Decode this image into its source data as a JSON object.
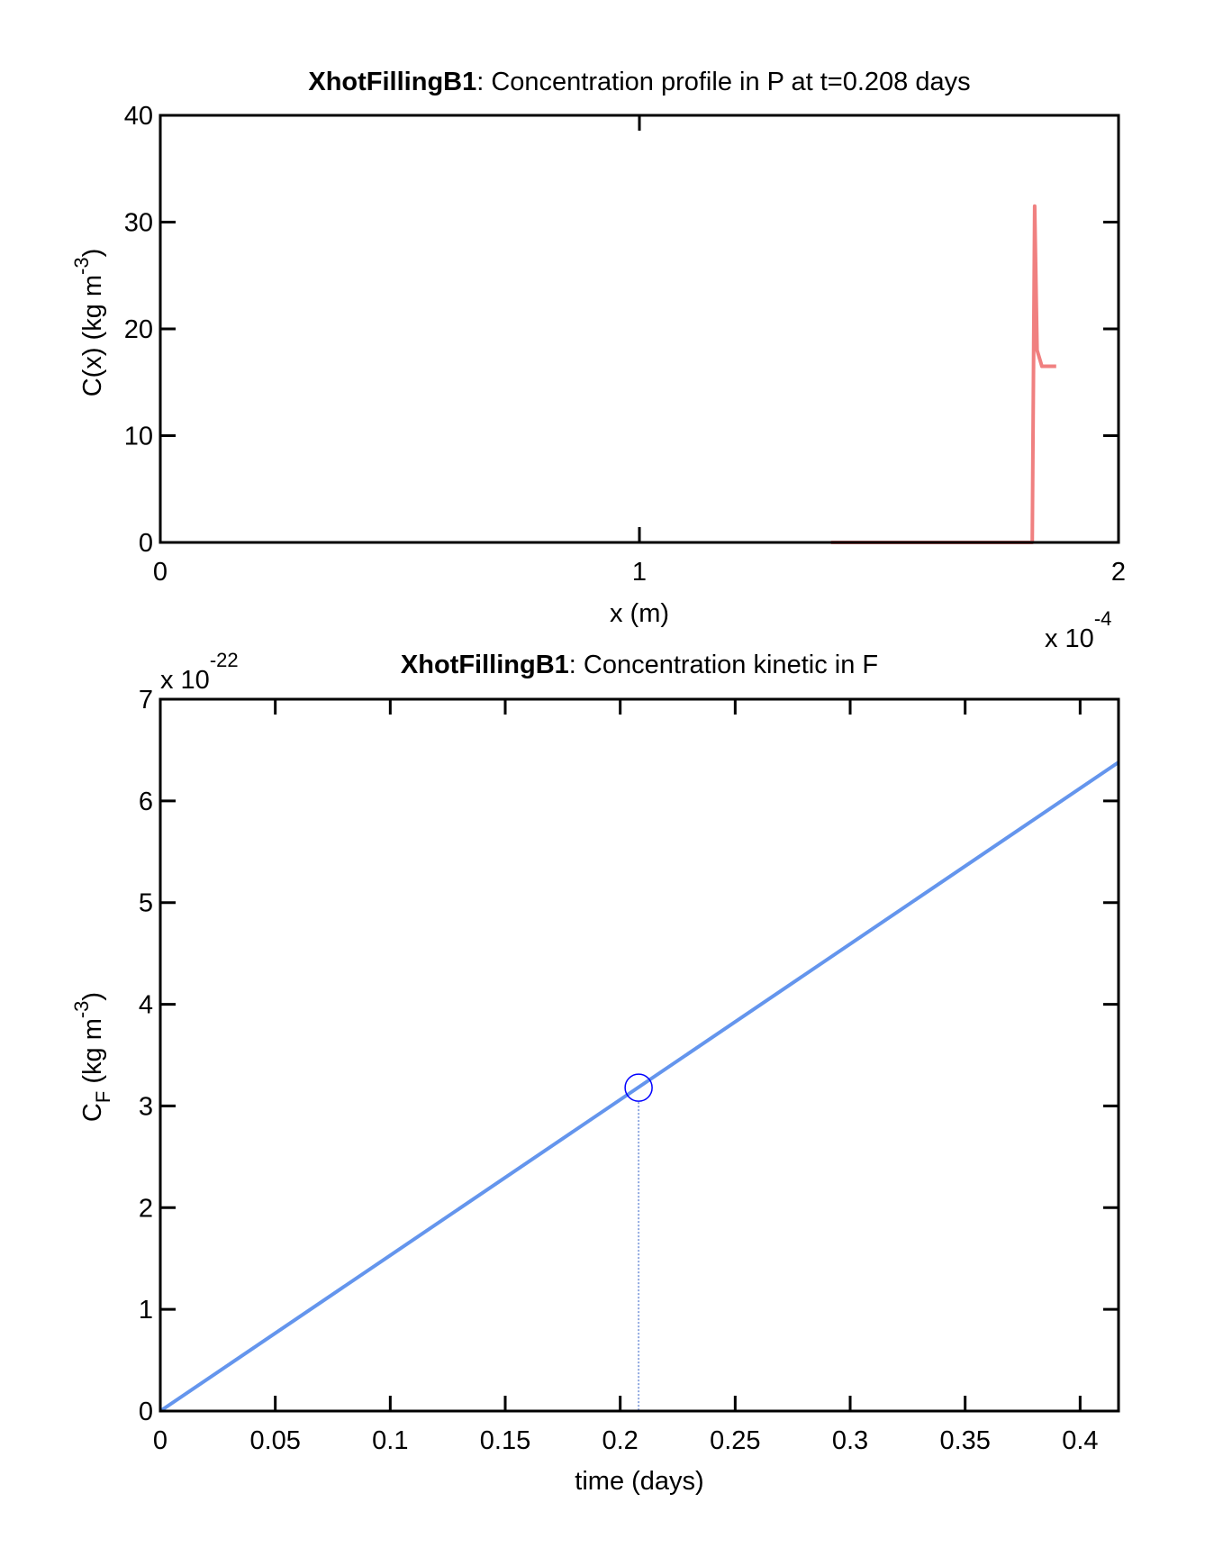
{
  "chart_data": [
    {
      "type": "line",
      "title_bold": "XhotFillingB1",
      "title_rest": ": Concentration profile in P at t=0.208 days",
      "xlabel": "x (m)",
      "ylabel_main": "C(x) (kg m",
      "ylabel_sup": "-3",
      "ylabel_close": ")",
      "x_multiplier": "x 10",
      "x_multiplier_exp": "-4",
      "xlim": [
        0,
        2
      ],
      "ylim": [
        0,
        40
      ],
      "xticks": [
        0,
        1,
        2
      ],
      "xtick_labels": [
        "0",
        "1",
        "2"
      ],
      "yticks": [
        0,
        10,
        20,
        30,
        40
      ],
      "ytick_labels": [
        "0",
        "10",
        "20",
        "30",
        "40"
      ],
      "color": "#f08080",
      "series": [
        {
          "x": [
            1.4,
            1.81,
            1.82,
            1.825,
            1.83,
            1.84,
            1.85,
            1.87
          ],
          "y": [
            0,
            0,
            0,
            31.5,
            18,
            16.5,
            16.5,
            16.5
          ]
        }
      ]
    },
    {
      "type": "line",
      "title_bold": "XhotFillingB1",
      "title_rest": ": Concentration kinetic in F",
      "xlabel": "time (days)",
      "ylabel_main": "C",
      "ylabel_sub": "F",
      "ylabel_units": " (kg m",
      "ylabel_sup": "-3",
      "ylabel_close": ")",
      "y_multiplier": "x 10",
      "y_multiplier_exp": "-22",
      "xlim": [
        0,
        0.4167
      ],
      "ylim": [
        0,
        7
      ],
      "xticks": [
        0,
        0.05,
        0.1,
        0.15,
        0.2,
        0.25,
        0.3,
        0.35,
        0.4
      ],
      "xtick_labels": [
        "0",
        "0.05",
        "0.1",
        "0.15",
        "0.2",
        "0.25",
        "0.3",
        "0.35",
        "0.4"
      ],
      "yticks": [
        0,
        1,
        2,
        3,
        4,
        5,
        6,
        7
      ],
      "ytick_labels": [
        "0",
        "1",
        "2",
        "3",
        "4",
        "5",
        "6",
        "7"
      ],
      "color": "#6495ed",
      "marker_color": "#0000ff",
      "series": [
        {
          "x": [
            0,
            0.4167
          ],
          "y": [
            0,
            6.38
          ]
        }
      ],
      "marker": {
        "x": 0.208,
        "y": 3.18
      }
    }
  ]
}
